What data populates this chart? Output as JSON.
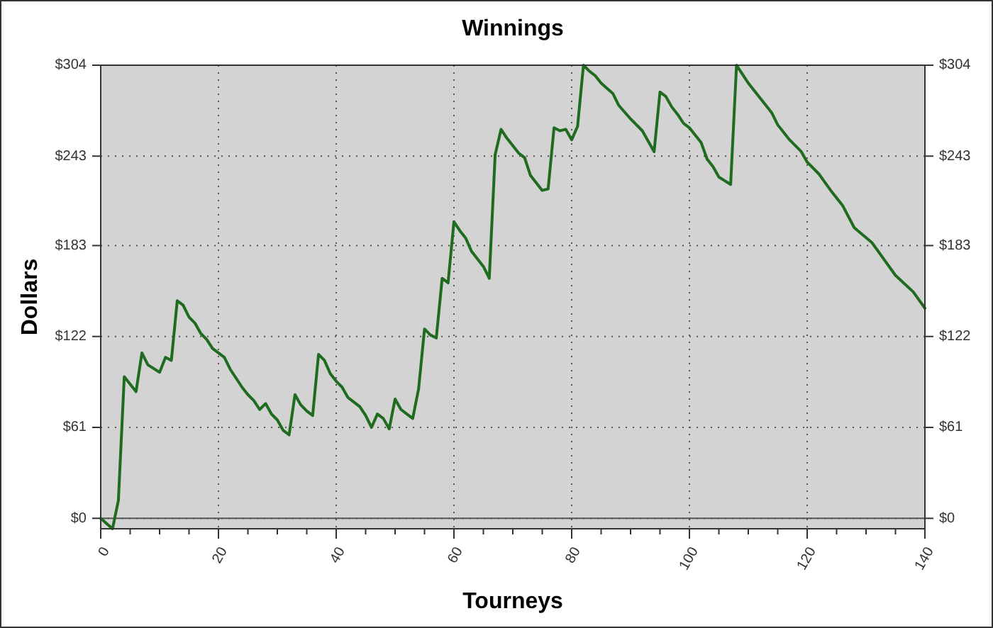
{
  "chart_data": {
    "type": "line",
    "title": "Winnings",
    "xlabel": "Tourneys",
    "ylabel": "Dollars",
    "x": [
      0,
      2,
      3,
      4,
      6,
      7,
      8,
      10,
      11,
      12,
      13,
      14,
      15,
      16,
      17,
      18,
      19,
      21,
      22,
      24,
      25,
      26,
      27,
      28,
      29,
      30,
      31,
      32,
      33,
      34,
      35,
      36,
      37,
      38,
      39,
      40,
      41,
      42,
      44,
      45,
      46,
      47,
      48,
      49,
      50,
      51,
      52,
      53,
      54,
      55,
      56,
      57,
      58,
      59,
      60,
      61,
      62,
      63,
      65,
      66,
      67,
      68,
      69,
      71,
      72,
      73,
      75,
      76,
      77,
      78,
      79,
      80,
      81,
      82,
      83,
      84,
      85,
      87,
      88,
      90,
      92,
      94,
      95,
      96,
      97,
      98,
      99,
      100,
      102,
      103,
      104,
      105,
      107,
      108,
      109,
      110,
      112,
      114,
      115,
      117,
      119,
      120,
      122,
      124,
      126,
      128,
      131,
      133,
      135,
      138,
      140
    ],
    "series": [
      {
        "color": "#1f6b1f",
        "values": [
          0,
          -7,
          12,
          95,
          85,
          111,
          103,
          98,
          108,
          106,
          146,
          143,
          135,
          131,
          124,
          120,
          114,
          108,
          100,
          88,
          83,
          79,
          73,
          77,
          70,
          66,
          59,
          56,
          83,
          76,
          72,
          69,
          110,
          106,
          97,
          92,
          88,
          81,
          75,
          69,
          61,
          70,
          67,
          60,
          80,
          73,
          70,
          67,
          87,
          127,
          123,
          121,
          161,
          158,
          199,
          193,
          188,
          179,
          169,
          161,
          244,
          261,
          255,
          245,
          242,
          230,
          220,
          221,
          262,
          260,
          261,
          254,
          263,
          304,
          300,
          297,
          292,
          285,
          277,
          268,
          260,
          246,
          286,
          283,
          276,
          271,
          265,
          262,
          252,
          241,
          236,
          229,
          224,
          304,
          298,
          292,
          282,
          272,
          264,
          254,
          246,
          239,
          231,
          220,
          210,
          195,
          185,
          174,
          163,
          152,
          141
        ]
      }
    ],
    "xlim": [
      0,
      140
    ],
    "xticks": [
      0,
      {
        "value": 5,
        "label": null
      },
      {
        "value": 10,
        "label": null
      },
      {
        "value": 15,
        "label": null
      },
      20,
      {
        "value": 25,
        "label": null
      },
      {
        "value": 30,
        "label": null
      },
      {
        "value": 35,
        "label": null
      },
      40,
      {
        "value": 45,
        "label": null
      },
      {
        "value": 50,
        "label": null
      },
      {
        "value": 55,
        "label": null
      },
      60,
      {
        "value": 65,
        "label": null
      },
      {
        "value": 70,
        "label": null
      },
      {
        "value": 75,
        "label": null
      },
      80,
      {
        "value": 85,
        "label": null
      },
      {
        "value": 90,
        "label": null
      },
      {
        "value": 95,
        "label": null
      },
      100,
      {
        "value": 105,
        "label": null
      },
      {
        "value": 110,
        "label": null
      },
      {
        "value": 115,
        "label": null
      },
      120,
      {
        "value": 125,
        "label": null
      },
      {
        "value": 130,
        "label": null
      },
      {
        "value": 135,
        "label": null
      },
      140
    ],
    "ylim": [
      -7,
      304
    ],
    "yticks": [
      {
        "value": 0,
        "label": "$0"
      },
      {
        "value": 61,
        "label": "$61"
      },
      {
        "value": 122,
        "label": "$122"
      },
      {
        "value": 183,
        "label": "$183"
      },
      {
        "value": 243,
        "label": "$243"
      },
      {
        "value": 304,
        "label": "$304"
      }
    ],
    "y2lim": [
      -7,
      304
    ],
    "y2ticks": [
      {
        "value": 0,
        "label": "$0"
      },
      {
        "value": 61,
        "label": "$61"
      },
      {
        "value": 122,
        "label": "$122"
      },
      {
        "value": 183,
        "label": "$183"
      },
      {
        "value": 243,
        "label": "$243"
      },
      {
        "value": 304,
        "label": "$304"
      }
    ],
    "ref_lines": [
      {
        "axis": "y",
        "value": 0,
        "color": "#555555"
      }
    ],
    "grid": true,
    "marker": "none",
    "line_style": "solid"
  }
}
